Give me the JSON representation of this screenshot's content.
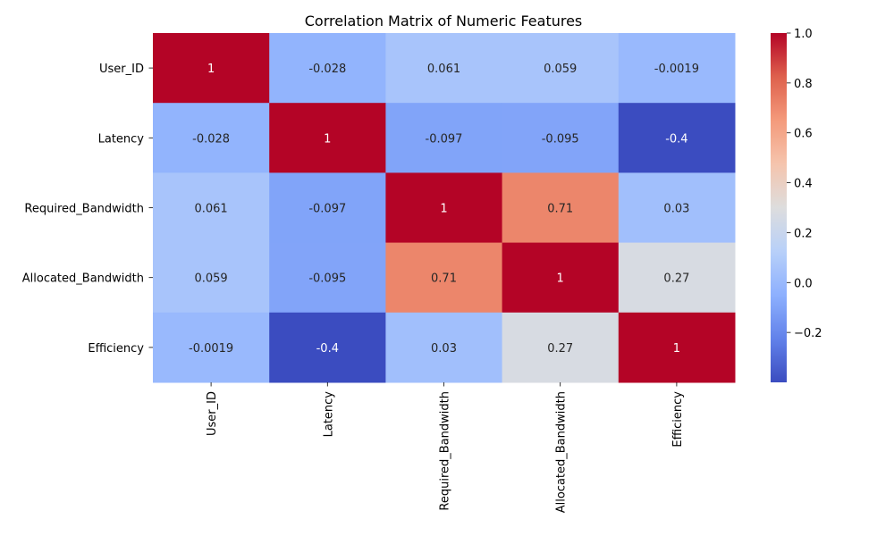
{
  "chart_data": {
    "type": "heatmap",
    "title": "Correlation Matrix of Numeric Features",
    "xlabel": "",
    "ylabel": "",
    "rows": [
      "User_ID",
      "Latency",
      "Required_Bandwidth",
      "Allocated_Bandwidth",
      "Efficiency"
    ],
    "columns": [
      "User_ID",
      "Latency",
      "Required_Bandwidth",
      "Allocated_Bandwidth",
      "Efficiency"
    ],
    "values": [
      [
        1,
        -0.028,
        0.061,
        0.059,
        -0.0019
      ],
      [
        -0.028,
        1,
        -0.097,
        -0.095,
        -0.4
      ],
      [
        0.061,
        -0.097,
        1,
        0.71,
        0.03
      ],
      [
        0.059,
        -0.095,
        0.71,
        1,
        0.27
      ],
      [
        -0.0019,
        -0.4,
        0.03,
        0.27,
        1
      ]
    ],
    "value_labels": [
      [
        "1",
        "-0.028",
        "0.061",
        "0.059",
        "-0.0019"
      ],
      [
        "-0.028",
        "1",
        "-0.097",
        "-0.095",
        "-0.4"
      ],
      [
        "0.061",
        "-0.097",
        "1",
        "0.71",
        "0.03"
      ],
      [
        "0.059",
        "-0.095",
        "0.71",
        "1",
        "0.27"
      ],
      [
        "-0.0019",
        "-0.4",
        "0.03",
        "0.27",
        "1"
      ]
    ],
    "colormap": "coolwarm",
    "color_range": [
      -0.4,
      1.0
    ],
    "colorbar_ticks": [
      -0.2,
      0.0,
      0.2,
      0.4,
      0.6,
      0.8,
      1.0
    ],
    "colorbar_tick_labels": [
      "−0.2",
      "0.0",
      "0.2",
      "0.4",
      "0.6",
      "0.8",
      "1.0"
    ],
    "grid": false,
    "legend_position": "right"
  }
}
